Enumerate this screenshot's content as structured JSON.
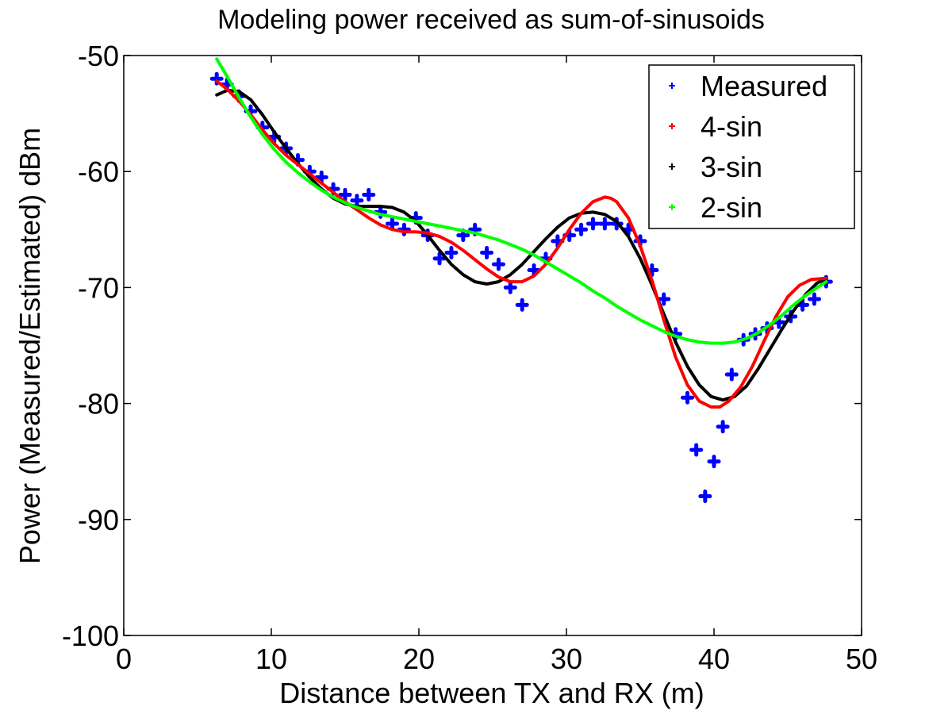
{
  "chart_data": {
    "type": "line",
    "title": "Modeling power received as sum-of-sinusoids",
    "xlabel": "Distance between TX and RX (m)",
    "ylabel": "Power (Measured/Estimated) dBm",
    "xlim": [
      0,
      50
    ],
    "ylim": [
      -100,
      -50
    ],
    "xticks": [
      0,
      10,
      20,
      30,
      40,
      50
    ],
    "yticks": [
      -100,
      -90,
      -80,
      -70,
      -60,
      -50
    ],
    "grid": false,
    "legend_position": "top-right",
    "series": [
      {
        "name": "Measured",
        "style": "points",
        "color": "#0000ff",
        "x": [
          6.3,
          7.0,
          7.8,
          8.6,
          9.4,
          10.2,
          11.0,
          11.8,
          12.6,
          13.4,
          14.2,
          15.0,
          15.8,
          16.6,
          17.4,
          18.2,
          19.0,
          19.8,
          20.6,
          21.4,
          22.2,
          23.0,
          23.8,
          24.6,
          25.4,
          26.2,
          27.0,
          27.8,
          28.6,
          29.4,
          30.2,
          31.0,
          31.8,
          32.6,
          33.4,
          34.2,
          35.0,
          35.8,
          36.6,
          37.4,
          38.2,
          38.8,
          39.4,
          40.0,
          40.6,
          41.2,
          42.0,
          42.8,
          43.6,
          44.4,
          45.2,
          46.0,
          46.8,
          47.6
        ],
        "y": [
          -52.0,
          -52.5,
          -53.5,
          -54.8,
          -56.2,
          -57.0,
          -58.0,
          -59.0,
          -60.0,
          -60.5,
          -61.5,
          -62.0,
          -62.5,
          -62.0,
          -63.5,
          -64.5,
          -65.0,
          -64.0,
          -65.5,
          -67.5,
          -67.0,
          -65.5,
          -65.0,
          -67.0,
          -68.0,
          -70.0,
          -71.5,
          -68.5,
          -67.5,
          -66.0,
          -65.5,
          -65.0,
          -64.5,
          -64.5,
          -64.5,
          -65.0,
          -66.0,
          -68.5,
          -71.0,
          -74.0,
          -79.5,
          -84.0,
          -88.0,
          -85.0,
          -82.0,
          -77.5,
          -74.5,
          -74.0,
          -73.5,
          -73.0,
          -72.5,
          -71.5,
          -71.0,
          -69.5
        ]
      },
      {
        "name": "4-sin",
        "style": "line",
        "color": "#ff0000",
        "x": [
          6.3,
          7.0,
          7.8,
          8.6,
          9.4,
          10.2,
          11.0,
          11.8,
          12.6,
          13.4,
          14.2,
          15.0,
          15.8,
          16.6,
          17.4,
          18.2,
          19.0,
          19.8,
          20.6,
          21.4,
          22.2,
          23.0,
          23.8,
          24.6,
          25.4,
          26.2,
          27.0,
          27.8,
          28.6,
          29.4,
          30.2,
          31.0,
          31.8,
          32.6,
          33.0,
          33.4,
          34.2,
          35.0,
          35.8,
          36.6,
          37.4,
          38.2,
          39.0,
          39.8,
          40.4,
          41.0,
          41.8,
          42.6,
          43.4,
          44.2,
          45.0,
          45.8,
          46.6,
          47.6
        ],
        "y": [
          -52.2,
          -52.9,
          -53.9,
          -55.1,
          -56.4,
          -57.6,
          -58.6,
          -59.4,
          -60.2,
          -61.0,
          -61.8,
          -62.6,
          -63.3,
          -64.0,
          -64.6,
          -65.0,
          -65.2,
          -65.2,
          -65.3,
          -65.6,
          -66.1,
          -66.8,
          -67.6,
          -68.4,
          -69.1,
          -69.5,
          -69.5,
          -69.0,
          -68.0,
          -66.6,
          -65.0,
          -63.6,
          -62.6,
          -62.2,
          -62.3,
          -62.6,
          -64.0,
          -66.4,
          -69.4,
          -72.8,
          -76.0,
          -78.4,
          -79.8,
          -80.3,
          -80.3,
          -79.8,
          -78.6,
          -76.8,
          -74.6,
          -72.5,
          -70.8,
          -69.8,
          -69.3,
          -69.2
        ]
      },
      {
        "name": "3-sin",
        "style": "line",
        "color": "#000000",
        "x": [
          6.3,
          7.0,
          7.8,
          8.6,
          9.4,
          10.2,
          11.0,
          11.8,
          12.6,
          13.4,
          14.2,
          15.0,
          15.8,
          16.6,
          17.4,
          18.2,
          19.0,
          19.8,
          20.6,
          21.4,
          22.2,
          23.0,
          23.8,
          24.6,
          25.4,
          26.2,
          27.0,
          27.8,
          28.6,
          29.4,
          30.2,
          31.0,
          31.8,
          32.6,
          33.4,
          34.2,
          35.0,
          35.8,
          36.6,
          37.4,
          38.2,
          39.0,
          39.8,
          40.6,
          41.4,
          42.2,
          43.0,
          43.8,
          44.6,
          45.4,
          46.2,
          47.0,
          47.6
        ],
        "y": [
          -53.4,
          -53.0,
          -53.1,
          -53.8,
          -55.1,
          -56.6,
          -58.0,
          -59.3,
          -60.5,
          -61.5,
          -62.3,
          -62.8,
          -63.0,
          -63.0,
          -63.0,
          -63.1,
          -63.5,
          -64.3,
          -65.5,
          -66.8,
          -68.0,
          -68.9,
          -69.5,
          -69.7,
          -69.5,
          -68.9,
          -68.0,
          -66.9,
          -65.8,
          -64.8,
          -64.0,
          -63.6,
          -63.5,
          -63.7,
          -64.3,
          -65.6,
          -67.5,
          -69.8,
          -72.3,
          -74.7,
          -76.8,
          -78.4,
          -79.4,
          -79.7,
          -79.4,
          -78.5,
          -77.0,
          -75.3,
          -73.6,
          -72.0,
          -70.6,
          -69.6,
          -69.2
        ]
      },
      {
        "name": "2-sin",
        "style": "line",
        "color": "#00ff00",
        "x": [
          6.3,
          7.0,
          7.8,
          8.6,
          9.4,
          10.2,
          11.0,
          11.8,
          12.6,
          13.4,
          14.2,
          15.0,
          15.8,
          16.6,
          17.4,
          18.2,
          19.0,
          19.8,
          20.6,
          21.4,
          22.2,
          23.0,
          23.8,
          24.6,
          25.4,
          26.2,
          27.0,
          27.8,
          28.6,
          29.4,
          30.2,
          31.0,
          31.8,
          32.6,
          33.4,
          34.2,
          35.0,
          35.8,
          36.6,
          37.4,
          38.2,
          39.0,
          39.8,
          40.6,
          41.4,
          42.2,
          43.0,
          43.8,
          44.6,
          45.4,
          46.2,
          47.0,
          47.6
        ],
        "y": [
          -50.3,
          -51.8,
          -53.6,
          -55.3,
          -56.8,
          -58.1,
          -59.2,
          -60.1,
          -60.9,
          -61.6,
          -62.2,
          -62.7,
          -63.1,
          -63.4,
          -63.7,
          -63.9,
          -64.1,
          -64.3,
          -64.5,
          -64.7,
          -64.9,
          -65.1,
          -65.3,
          -65.6,
          -65.9,
          -66.3,
          -66.7,
          -67.2,
          -67.8,
          -68.4,
          -69.0,
          -69.6,
          -70.3,
          -70.9,
          -71.6,
          -72.2,
          -72.8,
          -73.3,
          -73.8,
          -74.2,
          -74.5,
          -74.7,
          -74.8,
          -74.8,
          -74.7,
          -74.4,
          -73.9,
          -73.2,
          -72.4,
          -71.5,
          -70.7,
          -70.0,
          -69.5
        ]
      }
    ]
  }
}
